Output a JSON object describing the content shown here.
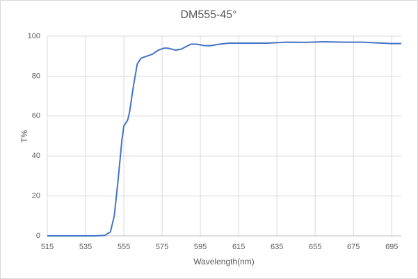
{
  "chart_data": {
    "type": "line",
    "title": "DM555-45°",
    "x_label": "Wavelength(nm)",
    "y_label": "T%",
    "xlim": [
      515,
      700
    ],
    "xticks": [
      515,
      535,
      555,
      575,
      595,
      615,
      635,
      655,
      675,
      695
    ],
    "ylim": [
      0,
      100
    ],
    "yticks": [
      0,
      20,
      40,
      60,
      80,
      100
    ],
    "grid": true,
    "series": [
      {
        "name": "T%",
        "color": "#4472c4",
        "x": [
          515,
          540,
          545,
          548,
          550,
          552,
          554,
          555,
          557,
          558,
          560,
          562,
          564,
          567,
          570,
          573,
          576,
          578,
          582,
          585,
          590,
          593,
          597,
          600,
          605,
          610,
          620,
          630,
          640,
          650,
          660,
          670,
          680,
          690,
          695,
          700
        ],
        "values": [
          0,
          0,
          0.2,
          2,
          10,
          28,
          48,
          55,
          58,
          62,
          75,
          86,
          89,
          90,
          91,
          93,
          94,
          94,
          93,
          93.5,
          96,
          96,
          95.3,
          95.2,
          96,
          96.5,
          96.5,
          96.5,
          97,
          96.9,
          97.2,
          97,
          97,
          96.5,
          96.3,
          96.3
        ]
      }
    ]
  }
}
